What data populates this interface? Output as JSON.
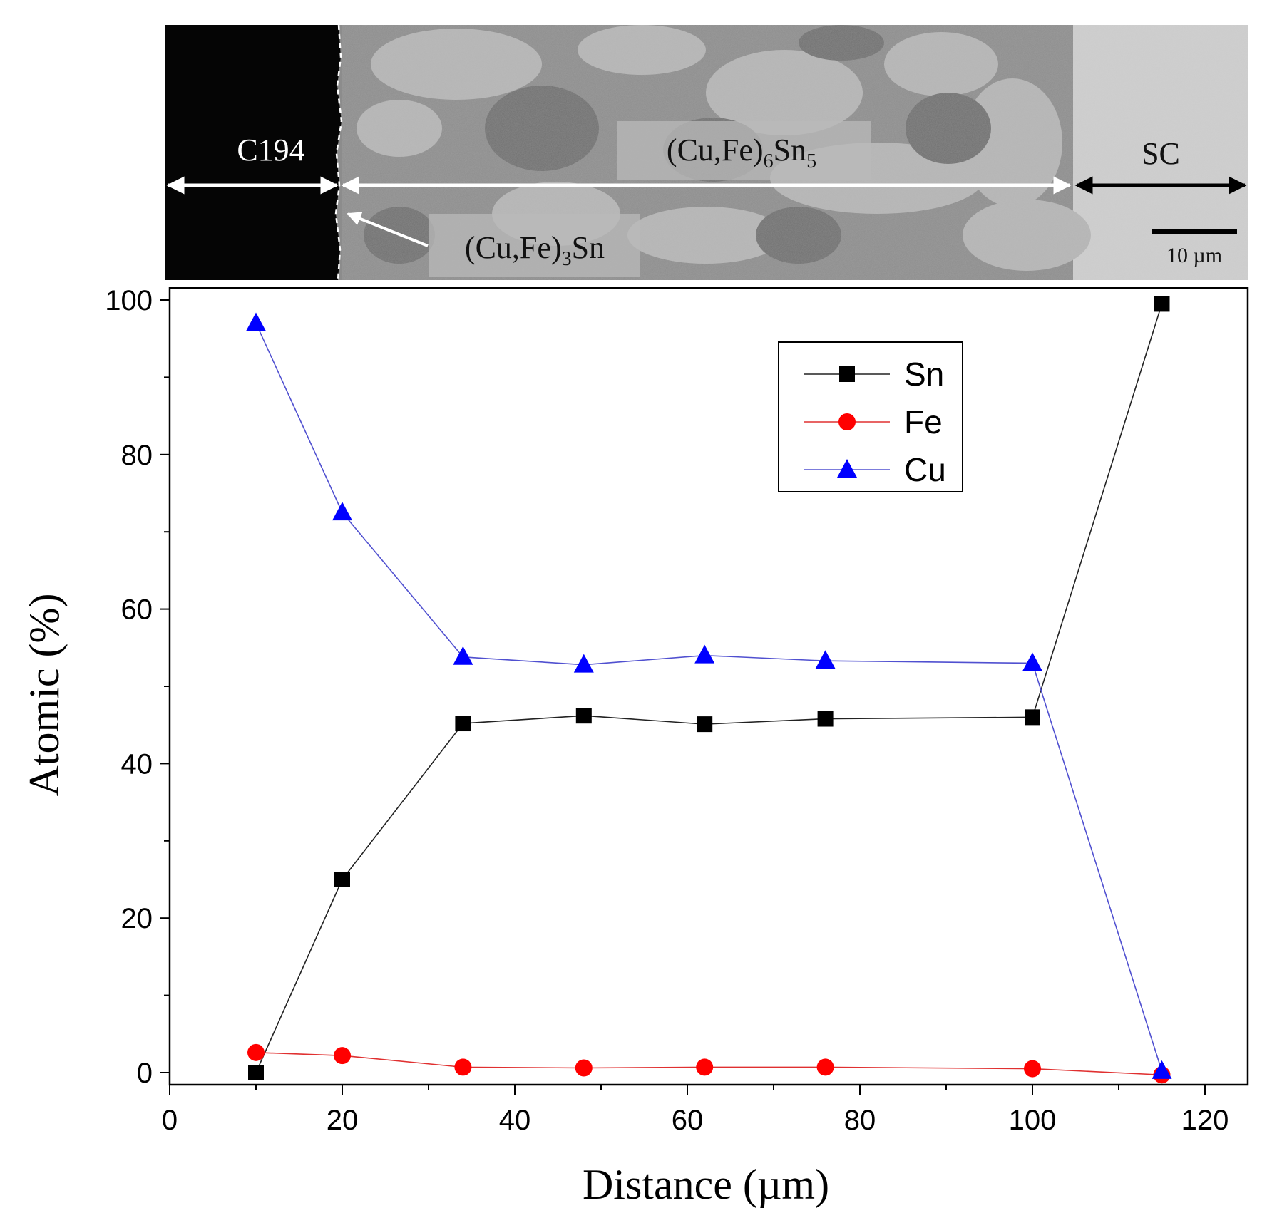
{
  "micrograph": {
    "region_labels": {
      "substrate": "C194",
      "imc_main": "(Cu,Fe)",
      "imc_main_sub1": "6",
      "imc_main_mid": "Sn",
      "imc_main_sub2": "5",
      "imc_thin": "(Cu,Fe)",
      "imc_thin_sub": "3",
      "imc_thin_end": "Sn",
      "solder": "SC"
    },
    "scale_bar": "10 µm"
  },
  "chart_data": {
    "type": "line",
    "xlabel": "Distance (µm)",
    "ylabel": "Atomic (%)",
    "xlim": [
      0,
      125
    ],
    "ylim": [
      -2,
      101
    ],
    "xticks": [
      0,
      20,
      40,
      60,
      80,
      100,
      120
    ],
    "yticks": [
      0,
      20,
      40,
      60,
      80,
      100
    ],
    "legend_position": "top-right",
    "x": [
      10,
      20,
      34,
      48,
      62,
      76,
      100,
      115
    ],
    "series": [
      {
        "name": "Sn",
        "color": "#000000",
        "line_color": "#222222",
        "marker": "square",
        "values": [
          0,
          25,
          45.2,
          46.2,
          45.1,
          45.8,
          46,
          99.5
        ]
      },
      {
        "name": "Fe",
        "color": "#ff0000",
        "line_color": "#e03030",
        "marker": "circle",
        "values": [
          2.6,
          2.2,
          0.7,
          0.6,
          0.7,
          0.7,
          0.5,
          -0.3
        ]
      },
      {
        "name": "Cu",
        "color": "#0000ff",
        "line_color": "#5050d0",
        "marker": "triangle",
        "values": [
          97,
          72.5,
          53.8,
          52.8,
          54,
          53.3,
          53,
          0.2
        ]
      }
    ]
  }
}
